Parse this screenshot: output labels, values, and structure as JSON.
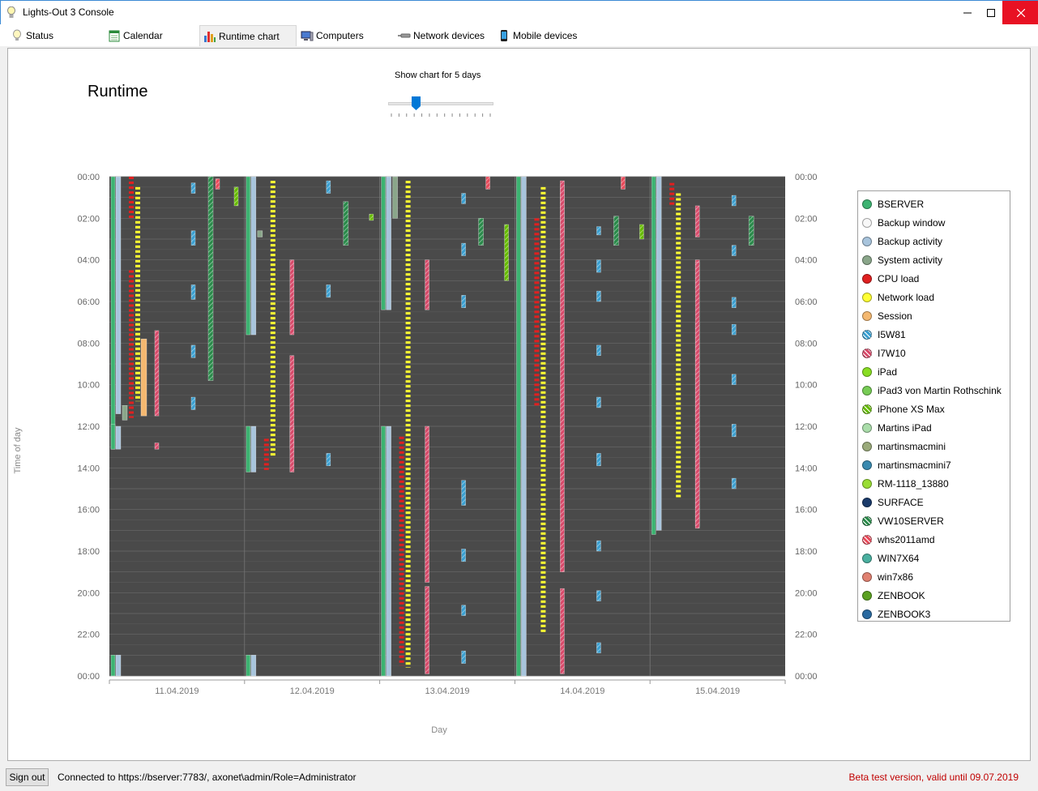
{
  "window": {
    "title": "Lights-Out 3 Console"
  },
  "tabs": [
    {
      "label": "Status",
      "icon": "bulb-icon"
    },
    {
      "label": "Calendar",
      "icon": "calendar-icon"
    },
    {
      "label": "Runtime chart",
      "icon": "bar-chart-icon"
    },
    {
      "label": "Computers",
      "icon": "computer-icon"
    },
    {
      "label": "Network devices",
      "icon": "network-device-icon"
    },
    {
      "label": "Mobile devices",
      "icon": "mobile-icon"
    }
  ],
  "active_tab": "Runtime chart",
  "chart_title": "Runtime",
  "slider": {
    "label": "Show chart for 5 days",
    "value": 5,
    "min": 1,
    "max": 14
  },
  "chart_data": {
    "type": "bar",
    "ylabel": "Time of day",
    "xlabel": "Day",
    "categories": [
      "11.04.2019",
      "12.04.2019",
      "13.04.2019",
      "14.04.2019",
      "15.04.2019"
    ],
    "y_ticks": [
      "00:00",
      "02:00",
      "04:00",
      "06:00",
      "08:00",
      "10:00",
      "12:00",
      "14:00",
      "16:00",
      "18:00",
      "20:00",
      "22:00",
      "00:00"
    ],
    "ylim": [
      0,
      24
    ],
    "grid": true,
    "legend_position": "right",
    "series": [
      {
        "name": "BSERVER",
        "color": "#3cb371",
        "intervals": [
          [
            0,
            0,
            13.1
          ],
          [
            0,
            11.9,
            13.1
          ],
          [
            0,
            23,
            24
          ],
          [
            1,
            0,
            7.6
          ],
          [
            1,
            12,
            14.2
          ],
          [
            1,
            23,
            24
          ],
          [
            2,
            0,
            6.4
          ],
          [
            2,
            12,
            24
          ],
          [
            3,
            0,
            24
          ],
          [
            4,
            0,
            17.2
          ]
        ]
      },
      {
        "name": "Backup window",
        "color": "#f8f8f8",
        "intervals": []
      },
      {
        "name": "Backup activity",
        "color": "#a8c4dc",
        "intervals": [
          [
            0,
            0,
            11.4
          ],
          [
            0,
            12,
            13.1
          ],
          [
            0,
            23,
            24
          ],
          [
            1,
            0,
            7.6
          ],
          [
            1,
            12,
            14.2
          ],
          [
            1,
            23,
            24
          ],
          [
            2,
            0,
            6.4
          ],
          [
            2,
            12,
            24
          ],
          [
            3,
            0,
            24
          ],
          [
            4,
            0,
            17
          ]
        ]
      },
      {
        "name": "System activity",
        "color": "#8aa68a",
        "intervals": [
          [
            0,
            11,
            11.7
          ],
          [
            1,
            2.6,
            2.9
          ],
          [
            2,
            0,
            2
          ]
        ]
      },
      {
        "name": "CPU load",
        "color": "#e02020",
        "intervals": [
          [
            0,
            0,
            2
          ],
          [
            0,
            4.5,
            11.6
          ],
          [
            1,
            12.6,
            14.1
          ],
          [
            2,
            12.5,
            23.5
          ],
          [
            3,
            2,
            11
          ],
          [
            4,
            0.3,
            1.4
          ]
        ]
      },
      {
        "name": "Network load",
        "color": "#ffff33",
        "intervals": [
          [
            0,
            0.5,
            10.8
          ],
          [
            1,
            0.2,
            13.5
          ],
          [
            2,
            0.2,
            23.6
          ],
          [
            3,
            0.5,
            22
          ],
          [
            4,
            0.8,
            15.5
          ]
        ]
      },
      {
        "name": "Session",
        "color": "#f4b870",
        "intervals": [
          [
            0,
            7.8,
            11.5
          ]
        ]
      },
      {
        "name": "I5W81",
        "color": "#3a9fd0",
        "intervals": [
          [
            0,
            0.3,
            0.8
          ],
          [
            0,
            2.6,
            3.3
          ],
          [
            0,
            5.2,
            5.9
          ],
          [
            0,
            8.1,
            8.7
          ],
          [
            0,
            10.6,
            11.2
          ],
          [
            1,
            0.2,
            0.8
          ],
          [
            1,
            5.2,
            5.8
          ],
          [
            1,
            13.3,
            13.9
          ],
          [
            2,
            0.8,
            1.3
          ],
          [
            2,
            3.2,
            3.8
          ],
          [
            2,
            5.7,
            6.3
          ],
          [
            2,
            14.6,
            15.8
          ],
          [
            2,
            17.9,
            18.5
          ],
          [
            2,
            20.6,
            21.1
          ],
          [
            2,
            22.8,
            23.4
          ],
          [
            3,
            2.4,
            2.8
          ],
          [
            3,
            4,
            4.6
          ],
          [
            3,
            5.5,
            6
          ],
          [
            3,
            8.1,
            8.6
          ],
          [
            3,
            10.6,
            11.1
          ],
          [
            3,
            13.3,
            13.9
          ],
          [
            3,
            17.5,
            18
          ],
          [
            3,
            19.9,
            20.4
          ],
          [
            3,
            22.4,
            22.9
          ],
          [
            4,
            0.9,
            1.4
          ],
          [
            4,
            3.3,
            3.8
          ],
          [
            4,
            5.8,
            6.3
          ],
          [
            4,
            7.1,
            7.6
          ],
          [
            4,
            9.5,
            10
          ],
          [
            4,
            11.9,
            12.5
          ],
          [
            4,
            14.5,
            15
          ]
        ]
      },
      {
        "name": "I7W10",
        "color": "#d84a6a",
        "intervals": [
          [
            0,
            7.4,
            11.5
          ],
          [
            0,
            12.8,
            13.1
          ],
          [
            1,
            4,
            7.6
          ],
          [
            1,
            8.6,
            13.1
          ],
          [
            1,
            12,
            14.2
          ],
          [
            2,
            4,
            6.4
          ],
          [
            2,
            12,
            19.5
          ],
          [
            2,
            19.7,
            23.9
          ],
          [
            3,
            0.4,
            2.8
          ],
          [
            3,
            19.8,
            23.9
          ],
          [
            3,
            0.2,
            19
          ],
          [
            4,
            1.4,
            2.9
          ],
          [
            4,
            4,
            5.4
          ],
          [
            4,
            7,
            16.8
          ],
          [
            4,
            4.1,
            16.9
          ]
        ]
      },
      {
        "name": "iPad",
        "color": "#88dd22",
        "intervals": []
      },
      {
        "name": "iPad3 von Martin Rothschink",
        "color": "#77cc55",
        "intervals": []
      },
      {
        "name": "iPhone XS Max",
        "color": "#66bb00",
        "intervals": [
          [
            0,
            0.5,
            1.4
          ],
          [
            1,
            1.8,
            2.1
          ],
          [
            2,
            2.3,
            5
          ],
          [
            3,
            2.3,
            3
          ]
        ]
      },
      {
        "name": "Martins iPad",
        "color": "#aaddaa",
        "intervals": []
      },
      {
        "name": "martinsmacmini",
        "color": "#9aaa7a",
        "intervals": []
      },
      {
        "name": "martinsmacmini7",
        "color": "#3a8ab0",
        "intervals": []
      },
      {
        "name": "RM-1118_13880",
        "color": "#99dd33",
        "intervals": []
      },
      {
        "name": "SURFACE",
        "color": "#1a3a6a",
        "intervals": []
      },
      {
        "name": "VW10SERVER",
        "color": "#2a8a4a",
        "intervals": [
          [
            0,
            0,
            9.8
          ],
          [
            1,
            1.2,
            3.3
          ],
          [
            2,
            2,
            3.3
          ],
          [
            3,
            1.9,
            3.3
          ],
          [
            4,
            1.9,
            3.3
          ]
        ]
      },
      {
        "name": "whs2011amd",
        "color": "#e84a5a",
        "intervals": [
          [
            0,
            0.1,
            0.6
          ],
          [
            2,
            0,
            0.6
          ],
          [
            3,
            0,
            0.6
          ]
        ]
      },
      {
        "name": "WIN7X64",
        "color": "#4ab0a0",
        "intervals": []
      },
      {
        "name": "win7x86",
        "color": "#e08070",
        "intervals": []
      },
      {
        "name": "ZENBOOK",
        "color": "#5aa020",
        "intervals": []
      },
      {
        "name": "ZENBOOK3",
        "color": "#2a6aa0",
        "intervals": []
      }
    ]
  },
  "status": {
    "signout_label": "Sign out",
    "connection": "Connected to https://bserver:7783/, axonet\\admin/Role=Administrator",
    "beta": "Beta test version, valid until 09.07.2019"
  }
}
